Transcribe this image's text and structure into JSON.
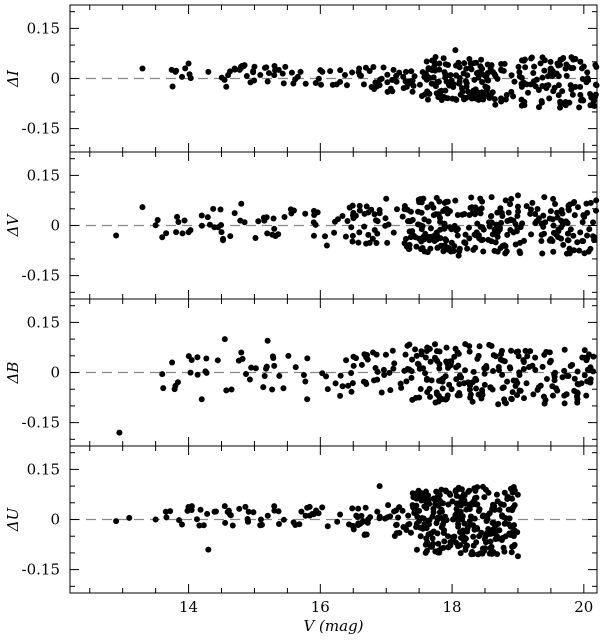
{
  "chart_data": {
    "type": "scatter",
    "x_axis": {
      "label": "V (mag)",
      "range": [
        12.2,
        20.2
      ],
      "major_ticks": [
        14,
        16,
        18,
        20
      ],
      "tick_labels": [
        "14",
        "16",
        "18",
        "20"
      ],
      "minor_step": 0.5
    },
    "y_ticks": [
      -0.15,
      0,
      0.15
    ],
    "y_tick_labels": [
      "-0.15",
      "0",
      "0.15"
    ],
    "y_minor_step": 0.05,
    "zero_line": "dashed",
    "marker_color": "#000000",
    "zero_line_color": "#888888",
    "panels": [
      {
        "ylabel": "ΔI",
        "ylim": [
          -0.22,
          0.22
        ],
        "points": [
          [
            13.3,
            0.03
          ],
          [
            13.8,
            0.02
          ],
          [
            13.9,
            0.005
          ],
          [
            14.0,
            0.045
          ],
          [
            14.3,
            0.02
          ],
          [
            14.6,
            0.01
          ],
          [
            14.7,
            0.03
          ],
          [
            14.85,
            0.04
          ],
          [
            15.0,
            0.035
          ],
          [
            15.3,
            0.01
          ],
          [
            15.7,
            0.02
          ],
          [
            16.0,
            0.025
          ],
          [
            16.3,
            -0.01
          ],
          [
            16.6,
            0.01
          ],
          [
            16.9,
            -0.02
          ],
          [
            17.3,
            0.02
          ],
          [
            17.6,
            0.015
          ],
          [
            17.8,
            -0.01
          ],
          [
            18.05,
            0.085
          ],
          [
            18.3,
            -0.06
          ],
          [
            18.6,
            0.04
          ],
          [
            18.9,
            -0.04
          ],
          [
            19.2,
            0.06
          ],
          [
            19.6,
            0.045
          ],
          [
            19.8,
            -0.02
          ],
          [
            20.1,
            -0.08
          ]
        ],
        "bands": [
          {
            "x": [
              13.7,
              16.5
            ],
            "y": [
              -0.025,
              0.04
            ],
            "n": 48
          },
          {
            "x": [
              16.5,
              17.4
            ],
            "y": [
              -0.04,
              0.04
            ],
            "n": 35
          },
          {
            "x": [
              17.4,
              18.6
            ],
            "y": [
              -0.065,
              0.065
            ],
            "n": 130
          },
          {
            "x": [
              18.6,
              20.2
            ],
            "y": [
              -0.09,
              0.065
            ],
            "n": 120
          }
        ]
      },
      {
        "ylabel": "ΔV",
        "ylim": [
          -0.22,
          0.22
        ],
        "points": [
          [
            12.9,
            -0.03
          ],
          [
            13.3,
            0.055
          ],
          [
            13.6,
            -0.035
          ],
          [
            14.2,
            0.03
          ],
          [
            14.5,
            -0.02
          ],
          [
            14.8,
            0.065
          ],
          [
            15.3,
            -0.01
          ],
          [
            15.6,
            0.045
          ],
          [
            16.1,
            -0.06
          ],
          [
            16.6,
            0.045
          ],
          [
            17.0,
            0.08
          ],
          [
            17.3,
            -0.04
          ],
          [
            17.5,
            0.07
          ],
          [
            18.1,
            -0.09
          ],
          [
            18.6,
            0.085
          ],
          [
            19.0,
            0.09
          ],
          [
            19.4,
            0.085
          ],
          [
            19.9,
            -0.05
          ],
          [
            20.1,
            -0.07
          ]
        ],
        "bands": [
          {
            "x": [
              13.5,
              16.2
            ],
            "y": [
              -0.05,
              0.05
            ],
            "n": 45
          },
          {
            "x": [
              16.2,
              17.3
            ],
            "y": [
              -0.055,
              0.06
            ],
            "n": 45
          },
          {
            "x": [
              17.3,
              18.5
            ],
            "y": [
              -0.08,
              0.085
            ],
            "n": 135
          },
          {
            "x": [
              18.5,
              20.2
            ],
            "y": [
              -0.085,
              0.08
            ],
            "n": 135
          }
        ]
      },
      {
        "ylabel": "ΔB",
        "ylim": [
          -0.22,
          0.22
        ],
        "points": [
          [
            12.95,
            -0.18
          ],
          [
            13.6,
            -0.005
          ],
          [
            13.75,
            0.03
          ],
          [
            13.8,
            -0.04
          ],
          [
            14.2,
            -0.08
          ],
          [
            14.55,
            0.1
          ],
          [
            14.8,
            0.06
          ],
          [
            15.2,
            0.095
          ],
          [
            15.3,
            0.02
          ],
          [
            15.8,
            -0.08
          ],
          [
            16.3,
            -0.07
          ],
          [
            16.8,
            0.06
          ],
          [
            17.1,
            0.065
          ],
          [
            17.5,
            -0.075
          ],
          [
            17.8,
            -0.07
          ],
          [
            18.2,
            0.085
          ],
          [
            18.7,
            -0.095
          ],
          [
            19.5,
            0.035
          ],
          [
            19.9,
            -0.09
          ],
          [
            20.1,
            -0.03
          ]
        ],
        "bands": [
          {
            "x": [
              13.6,
              16.3
            ],
            "y": [
              -0.06,
              0.05
            ],
            "n": 38
          },
          {
            "x": [
              16.3,
              17.3
            ],
            "y": [
              -0.06,
              0.055
            ],
            "n": 35
          },
          {
            "x": [
              17.3,
              18.6
            ],
            "y": [
              -0.09,
              0.085
            ],
            "n": 115
          },
          {
            "x": [
              18.6,
              20.2
            ],
            "y": [
              -0.095,
              0.07
            ],
            "n": 105
          }
        ]
      },
      {
        "ylabel": "ΔU",
        "ylim": [
          -0.22,
          0.22
        ],
        "points": [
          [
            12.9,
            -0.005
          ],
          [
            13.1,
            0.005
          ],
          [
            13.5,
            0.0
          ],
          [
            13.9,
            -0.015
          ],
          [
            14.05,
            0.04
          ],
          [
            14.3,
            -0.09
          ],
          [
            14.55,
            0.04
          ],
          [
            15.3,
            0.04
          ],
          [
            15.8,
            0.035
          ],
          [
            16.3,
            0.015
          ],
          [
            16.9,
            0.1
          ],
          [
            17.2,
            -0.04
          ],
          [
            17.6,
            -0.1
          ],
          [
            18.1,
            0.095
          ],
          [
            18.8,
            0.08
          ],
          [
            19.0,
            -0.11
          ]
        ],
        "bands": [
          {
            "x": [
              13.6,
              16.5
            ],
            "y": [
              -0.025,
              0.04
            ],
            "n": 52
          },
          {
            "x": [
              16.5,
              17.4
            ],
            "y": [
              -0.05,
              0.05
            ],
            "n": 40
          },
          {
            "x": [
              17.4,
              18.05
            ],
            "y": [
              -0.1,
              0.09
            ],
            "n": 110
          },
          {
            "x": [
              18.05,
              19.0
            ],
            "y": [
              -0.105,
              0.1
            ],
            "n": 175
          }
        ]
      }
    ]
  }
}
